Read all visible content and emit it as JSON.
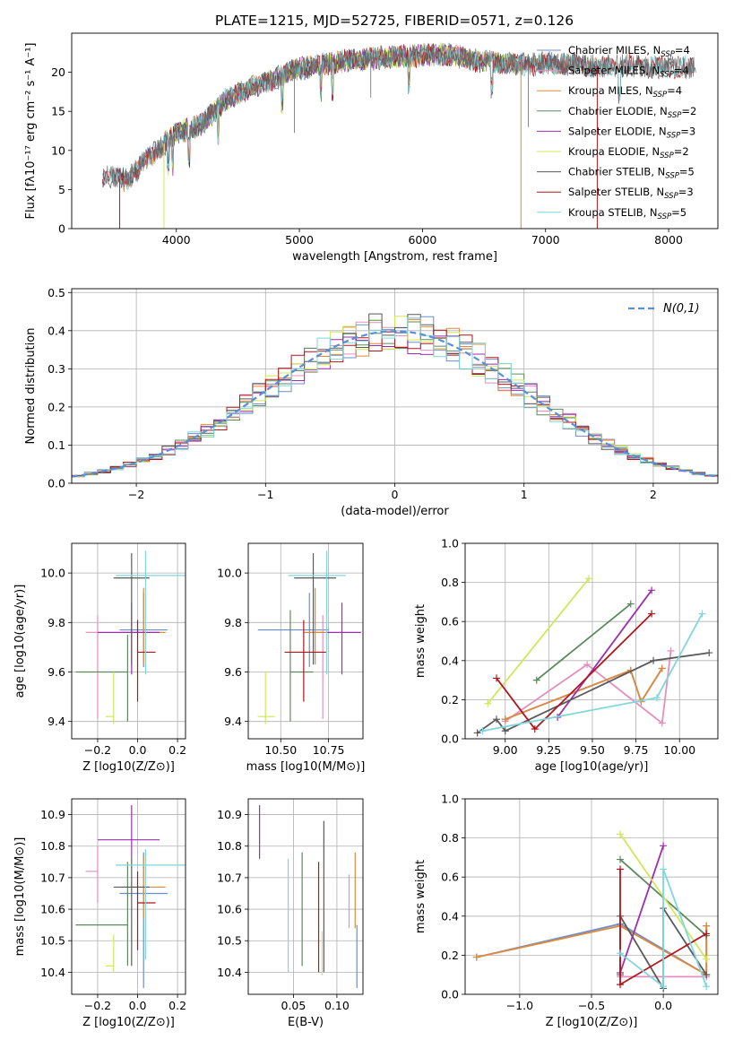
{
  "figure_title": "PLATE=1215, MJD=52725, FIBERID=0571, z=0.126",
  "colors": {
    "chab_miles": "#6a8fce",
    "salp_miles": "#e48fbd",
    "krou_miles": "#e0893a",
    "chab_elodie": "#5d8a5d",
    "salp_elodie": "#9b2fae",
    "krou_elodie": "#cfe85a",
    "chab_stelib": "#5a5a5a",
    "salp_stelib": "#b0171f",
    "krou_stelib": "#7fd6dc",
    "normal": "#5b8ed6",
    "grid": "#b0b0b0"
  },
  "series_order": [
    "chab_miles",
    "salp_miles",
    "krou_miles",
    "chab_elodie",
    "salp_elodie",
    "krou_elodie",
    "chab_stelib",
    "salp_stelib",
    "krou_stelib"
  ],
  "chart_data": [
    {
      "id": "spectrum",
      "type": "line",
      "xlabel": "wavelength [Angstrom, rest frame]",
      "ylabel": "Flux [fλ10⁻¹⁷ erg cm⁻² s⁻¹ A⁻¹]",
      "xlim": [
        3150,
        8400
      ],
      "ylim": [
        0,
        25
      ],
      "xticks": [
        4000,
        5000,
        6000,
        7000,
        8000
      ],
      "yticks": [
        0,
        5,
        10,
        15,
        20
      ],
      "legend": [
        {
          "key": "chab_miles",
          "label": "Chabrier MILES, N_SSP=4"
        },
        {
          "key": "salp_miles",
          "label": "Salpeter MILES, N_SSP=4"
        },
        {
          "key": "krou_miles",
          "label": "Kroupa MILES, N_SSP=4"
        },
        {
          "key": "chab_elodie",
          "label": "Chabrier ELODIE, N_SSP=2"
        },
        {
          "key": "salp_elodie",
          "label": "Salpeter ELODIE, N_SSP=3"
        },
        {
          "key": "krou_elodie",
          "label": "Kroupa ELODIE, N_SSP=2"
        },
        {
          "key": "chab_stelib",
          "label": "Chabrier STELIB, N_SSP=5"
        },
        {
          "key": "salp_stelib",
          "label": "Salpeter STELIB, N_SSP=3"
        },
        {
          "key": "krou_stelib",
          "label": "Kroupa STELIB, N_SSP=5"
        }
      ],
      "continuum": [
        [
          3400,
          6.8
        ],
        [
          3600,
          6.2
        ],
        [
          3800,
          9.5
        ],
        [
          4000,
          12.2
        ],
        [
          4200,
          13.2
        ],
        [
          4400,
          16.5
        ],
        [
          4600,
          18.0
        ],
        [
          4800,
          19.2
        ],
        [
          5000,
          20.5
        ],
        [
          5200,
          21.0
        ],
        [
          5400,
          21.5
        ],
        [
          5600,
          21.8
        ],
        [
          5800,
          22.0
        ],
        [
          6000,
          22.2
        ],
        [
          6200,
          22.3
        ],
        [
          6400,
          21.6
        ],
        [
          6600,
          21.3
        ],
        [
          6800,
          20.9
        ],
        [
          7000,
          21.2
        ],
        [
          7200,
          21.0
        ],
        [
          7400,
          20.8
        ],
        [
          7600,
          20.9
        ],
        [
          7800,
          20.7
        ],
        [
          8000,
          20.6
        ],
        [
          8200,
          20.5
        ]
      ],
      "model_ranges": {
        "chab_miles": [
          3540,
          7420
        ],
        "salp_miles": [
          3540,
          7420
        ],
        "krou_miles": [
          3540,
          7420
        ],
        "chab_elodie": [
          3900,
          6800
        ],
        "salp_elodie": [
          3900,
          6800
        ],
        "krou_elodie": [
          3900,
          6800
        ],
        "chab_stelib": [
          3400,
          8200
        ],
        "salp_stelib": [
          3400,
          8200
        ],
        "krou_stelib": [
          3400,
          8200
        ]
      }
    },
    {
      "id": "residuals",
      "type": "histogram",
      "xlabel": "(data-model)/error",
      "ylabel": "Normed distribution",
      "xlim": [
        -2.5,
        2.5
      ],
      "ylim": [
        0,
        0.51
      ],
      "xticks": [
        -2,
        -1,
        0,
        1,
        2
      ],
      "yticks": [
        0.0,
        0.1,
        0.2,
        0.3,
        0.4,
        0.5
      ],
      "bin_width": 0.1,
      "legend_label": "N(0,1)"
    },
    {
      "id": "age_vs_Z",
      "type": "errorbar",
      "xlabel": "Z [log10(Z/Z⊙)]",
      "ylabel": "age  [log10(age/yr)]",
      "xlim": [
        -0.33,
        0.24
      ],
      "ylim": [
        9.33,
        10.12
      ],
      "xticks": [
        -0.2,
        0.0,
        0.2
      ],
      "yticks": [
        9.4,
        9.6,
        9.8,
        10.0
      ],
      "points": [
        {
          "key": "chab_miles",
          "x": 0.03,
          "xerr": [
            0.12,
            0.12
          ],
          "y": 9.77,
          "yerr": [
            0.15,
            0.15
          ]
        },
        {
          "key": "salp_miles",
          "x": -0.2,
          "xerr": [
            0.06,
            0.0
          ],
          "y": 9.76,
          "yerr": [
            0.35,
            0.07
          ]
        },
        {
          "key": "krou_miles",
          "x": 0.03,
          "xerr": [
            0.11,
            0.11
          ],
          "y": 9.76,
          "yerr": [
            0.13,
            0.18
          ]
        },
        {
          "key": "chab_elodie",
          "x": -0.05,
          "xerr": [
            0.26,
            0.0
          ],
          "y": 9.6,
          "yerr": [
            0.2,
            0.15
          ]
        },
        {
          "key": "salp_elodie",
          "x": -0.03,
          "xerr": [
            0.17,
            0.14
          ],
          "y": 9.76,
          "yerr": [
            0.17,
            0.12
          ]
        },
        {
          "key": "krou_elodie",
          "x": -0.12,
          "xerr": [
            0.04,
            0.0
          ],
          "y": 9.42,
          "yerr": [
            0.03,
            0.18
          ]
        },
        {
          "key": "chab_stelib",
          "x": -0.03,
          "xerr": [
            0.09,
            0.09
          ],
          "y": 9.98,
          "yerr": [
            0.35,
            0.1
          ]
        },
        {
          "key": "salp_stelib",
          "x": 0.0,
          "xerr": [
            0.0,
            0.09
          ],
          "y": 9.68,
          "yerr": [
            0.2,
            0.13
          ]
        },
        {
          "key": "krou_stelib",
          "x": 0.04,
          "xerr": [
            0.15,
            0.2
          ],
          "y": 9.99,
          "yerr": [
            0.4,
            0.1
          ]
        }
      ]
    },
    {
      "id": "age_vs_mass",
      "type": "errorbar",
      "xlabel": "mass [log10(M/M⊙)]",
      "ylabel": "",
      "xlim": [
        10.33,
        10.93
      ],
      "ylim": [
        9.33,
        10.12
      ],
      "xticks": [
        10.5,
        10.75
      ],
      "yticks": [
        9.4,
        9.6,
        9.8,
        10.0
      ],
      "points": [
        {
          "key": "chab_miles",
          "x": 10.65,
          "xerr": [
            0.27,
            0.1
          ],
          "y": 9.77,
          "yerr": [
            0.15,
            0.15
          ]
        },
        {
          "key": "salp_miles",
          "x": 10.72,
          "xerr": [
            0.05,
            0.0
          ],
          "y": 9.76,
          "yerr": [
            0.35,
            0.07
          ]
        },
        {
          "key": "krou_miles",
          "x": 10.68,
          "xerr": [
            0.06,
            0.06
          ],
          "y": 9.76,
          "yerr": [
            0.13,
            0.18
          ]
        },
        {
          "key": "chab_elodie",
          "x": 10.55,
          "xerr": [
            0.0,
            0.12
          ],
          "y": 9.6,
          "yerr": [
            0.2,
            0.25
          ]
        },
        {
          "key": "salp_elodie",
          "x": 10.82,
          "xerr": [
            0.08,
            0.1
          ],
          "y": 9.76,
          "yerr": [
            0.17,
            0.12
          ]
        },
        {
          "key": "krou_elodie",
          "x": 10.42,
          "xerr": [
            0.04,
            0.05
          ],
          "y": 9.42,
          "yerr": [
            0.03,
            0.18
          ]
        },
        {
          "key": "chab_stelib",
          "x": 10.67,
          "xerr": [
            0.1,
            0.12
          ],
          "y": 9.98,
          "yerr": [
            0.35,
            0.1
          ]
        },
        {
          "key": "salp_stelib",
          "x": 10.62,
          "xerr": [
            0.1,
            0.12
          ],
          "y": 9.68,
          "yerr": [
            0.2,
            0.13
          ]
        },
        {
          "key": "krou_stelib",
          "x": 10.74,
          "xerr": [
            0.2,
            0.1
          ],
          "y": 9.99,
          "yerr": [
            0.4,
            0.1
          ]
        }
      ]
    },
    {
      "id": "weight_vs_age",
      "type": "line",
      "xlabel": "age  [log10(age/yr)]",
      "ylabel": "mass weight",
      "xlim": [
        8.77,
        10.22
      ],
      "ylim": [
        0,
        1
      ],
      "xticks": [
        9.0,
        9.25,
        9.5,
        9.75,
        10.0
      ],
      "yticks": [
        0.0,
        0.2,
        0.4,
        0.6,
        0.8,
        1.0
      ],
      "series": [
        {
          "key": "chab_miles",
          "points": [
            [
              9.0,
              0.1
            ],
            [
              9.72,
              0.35
            ],
            [
              9.78,
              0.19
            ],
            [
              9.9,
              0.36
            ]
          ]
        },
        {
          "key": "salp_miles",
          "points": [
            [
              9.0,
              0.09
            ],
            [
              9.47,
              0.38
            ],
            [
              9.9,
              0.08
            ],
            [
              9.95,
              0.45
            ]
          ]
        },
        {
          "key": "krou_miles",
          "points": [
            [
              9.0,
              0.1
            ],
            [
              9.72,
              0.35
            ],
            [
              9.78,
              0.19
            ],
            [
              9.9,
              0.36
            ]
          ]
        },
        {
          "key": "chab_elodie",
          "points": [
            [
              9.18,
              0.3
            ],
            [
              9.72,
              0.69
            ]
          ]
        },
        {
          "key": "salp_elodie",
          "points": [
            [
              9.3,
              0.11
            ],
            [
              9.84,
              0.76
            ]
          ]
        },
        {
          "key": "krou_elodie",
          "points": [
            [
              8.9,
              0.18
            ],
            [
              9.48,
              0.82
            ]
          ]
        },
        {
          "key": "chab_stelib",
          "points": [
            [
              8.84,
              0.03
            ],
            [
              8.95,
              0.1
            ],
            [
              9.0,
              0.04
            ],
            [
              9.85,
              0.4
            ],
            [
              10.17,
              0.44
            ]
          ]
        },
        {
          "key": "salp_stelib",
          "points": [
            [
              8.95,
              0.31
            ],
            [
              9.17,
              0.05
            ],
            [
              9.84,
              0.64
            ]
          ]
        },
        {
          "key": "krou_stelib",
          "points": [
            [
              8.87,
              0.04
            ],
            [
              9.87,
              0.21
            ],
            [
              10.13,
              0.64
            ]
          ]
        }
      ]
    },
    {
      "id": "mass_vs_Z",
      "type": "errorbar",
      "xlabel": "Z [log10(Z/Z⊙)]",
      "ylabel": "mass [log10(M/M⊙)]",
      "xlim": [
        -0.33,
        0.24
      ],
      "ylim": [
        10.33,
        10.95
      ],
      "xticks": [
        -0.2,
        0.0,
        0.2
      ],
      "yticks": [
        10.4,
        10.5,
        10.6,
        10.7,
        10.8,
        10.9
      ],
      "points": [
        {
          "key": "chab_miles",
          "x": 0.03,
          "xerr": [
            0.12,
            0.12
          ],
          "y": 10.65,
          "yerr": [
            0.3,
            0.13
          ]
        },
        {
          "key": "salp_miles",
          "x": -0.2,
          "xerr": [
            0.06,
            0.0
          ],
          "y": 10.72,
          "yerr": [
            0.1,
            0.08
          ]
        },
        {
          "key": "krou_miles",
          "x": 0.03,
          "xerr": [
            0.11,
            0.11
          ],
          "y": 10.67,
          "yerr": [
            0.1,
            0.1
          ]
        },
        {
          "key": "chab_elodie",
          "x": -0.05,
          "xerr": [
            0.26,
            0.0
          ],
          "y": 10.55,
          "yerr": [
            0.13,
            0.2
          ]
        },
        {
          "key": "salp_elodie",
          "x": -0.03,
          "xerr": [
            0.17,
            0.14
          ],
          "y": 10.82,
          "yerr": [
            0.05,
            0.11
          ]
        },
        {
          "key": "krou_elodie",
          "x": -0.12,
          "xerr": [
            0.04,
            0.0
          ],
          "y": 10.42,
          "yerr": [
            0.02,
            0.1
          ]
        },
        {
          "key": "chab_stelib",
          "x": -0.03,
          "xerr": [
            0.09,
            0.09
          ],
          "y": 10.67,
          "yerr": [
            0.25,
            0.1
          ]
        },
        {
          "key": "salp_stelib",
          "x": 0.0,
          "xerr": [
            0.0,
            0.09
          ],
          "y": 10.62,
          "yerr": [
            0.15,
            0.1
          ]
        },
        {
          "key": "krou_stelib",
          "x": 0.04,
          "xerr": [
            0.15,
            0.2
          ],
          "y": 10.74,
          "yerr": [
            0.3,
            0.05
          ]
        }
      ]
    },
    {
      "id": "mass_vs_ebv",
      "type": "errorbar",
      "xlabel": "E(B-V)",
      "ylabel": "",
      "xlim": [
        -0.002,
        0.13
      ],
      "ylim": [
        10.33,
        10.95
      ],
      "xticks": [
        0.05,
        0.1
      ],
      "yticks": [
        10.4,
        10.5,
        10.6,
        10.7,
        10.8,
        10.9
      ],
      "points": [
        {
          "key": "chab_miles",
          "x": 0.123,
          "y": 10.5,
          "yerr": [
            0.15,
            0.05
          ]
        },
        {
          "key": "salp_miles",
          "x": 0.114,
          "y": 10.66,
          "yerr": [
            0.12,
            0.05
          ]
        },
        {
          "key": "krou_miles",
          "x": 0.121,
          "y": 10.67,
          "yerr": [
            0.13,
            0.11
          ]
        },
        {
          "key": "chab_elodie",
          "x": 0.06,
          "y": 10.65,
          "yerr": [
            0.23,
            0.13
          ]
        },
        {
          "key": "salp_elodie",
          "x": 0.011,
          "y": 10.85,
          "yerr": [
            0.09,
            0.08
          ]
        },
        {
          "key": "krou_elodie",
          "x": 0.083,
          "y": 10.46,
          "yerr": [
            0.07,
            0.07
          ]
        },
        {
          "key": "chab_stelib",
          "x": 0.085,
          "y": 10.7,
          "yerr": [
            0.3,
            0.18
          ]
        },
        {
          "key": "salp_stelib",
          "x": 0.079,
          "y": 10.62,
          "yerr": [
            0.22,
            0.13
          ]
        },
        {
          "key": "krou_stelib",
          "x": 0.044,
          "y": 10.6,
          "yerr": [
            0.2,
            0.16
          ]
        }
      ]
    },
    {
      "id": "weight_vs_Z",
      "type": "line",
      "xlabel": "Z [log10(Z/Z⊙)]",
      "ylabel": "mass weight",
      "xlim": [
        -1.38,
        0.38
      ],
      "ylim": [
        0,
        1
      ],
      "xticks": [
        -1.0,
        -0.5,
        0.0
      ],
      "yticks": [
        0.0,
        0.2,
        0.4,
        0.6,
        0.8,
        1.0
      ],
      "series": [
        {
          "key": "chab_miles",
          "points": [
            [
              -1.3,
              0.19
            ],
            [
              -0.3,
              0.36
            ],
            [
              0.3,
              0.1
            ],
            [
              0.3,
              0.35
            ]
          ]
        },
        {
          "key": "salp_miles",
          "points": [
            [
              -0.3,
              0.09
            ],
            [
              0.3,
              0.09
            ]
          ]
        },
        {
          "key": "krou_miles",
          "points": [
            [
              -1.3,
              0.19
            ],
            [
              -0.3,
              0.35
            ],
            [
              0.3,
              0.1
            ],
            [
              0.3,
              0.35
            ]
          ]
        },
        {
          "key": "chab_elodie",
          "points": [
            [
              -0.3,
              0.69
            ],
            [
              0.3,
              0.3
            ]
          ]
        },
        {
          "key": "salp_elodie",
          "points": [
            [
              -0.3,
              0.11
            ],
            [
              0.0,
              0.76
            ]
          ]
        },
        {
          "key": "krou_elodie",
          "points": [
            [
              -0.3,
              0.82
            ],
            [
              0.3,
              0.18
            ]
          ]
        },
        {
          "key": "chab_stelib",
          "points": [
            [
              -0.3,
              0.1
            ],
            [
              -0.3,
              0.4
            ],
            [
              0.0,
              0.03
            ],
            [
              0.0,
              0.44
            ],
            [
              0.3,
              0.1
            ]
          ]
        },
        {
          "key": "salp_stelib",
          "points": [
            [
              -0.3,
              0.64
            ],
            [
              -0.3,
              0.05
            ],
            [
              0.3,
              0.31
            ]
          ]
        },
        {
          "key": "krou_stelib",
          "points": [
            [
              -0.3,
              0.21
            ],
            [
              0.0,
              0.04
            ],
            [
              0.0,
              0.64
            ],
            [
              0.3,
              0.04
            ]
          ]
        }
      ]
    }
  ]
}
